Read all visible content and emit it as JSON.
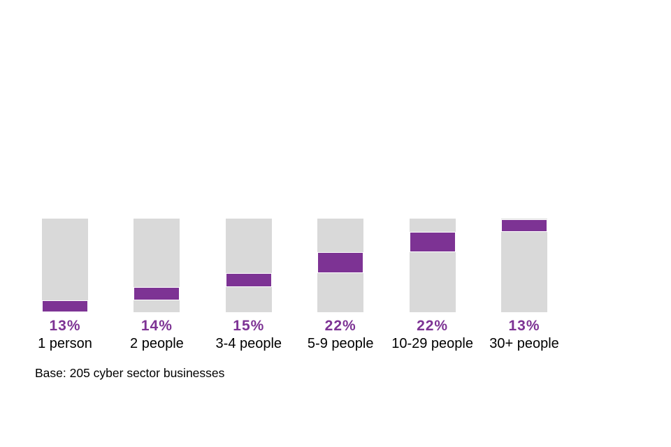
{
  "chart_data": {
    "type": "bar",
    "variant": "single-column-cumulative-distribution",
    "title": "",
    "categories": [
      "1 person",
      "2 people",
      "3-4 people",
      "5-9 people",
      "10-29 people",
      "30+ people"
    ],
    "values": [
      13,
      14,
      15,
      22,
      22,
      13
    ],
    "value_labels": [
      "13%",
      "14%",
      "15%",
      "22%",
      "22%",
      "13%"
    ],
    "cumulative_bottom_pct": [
      0,
      13,
      27,
      42,
      64,
      86
    ],
    "ylim": [
      0,
      100
    ],
    "grid": false,
    "legend": false,
    "note": "Base: 205 cyber sector businesses",
    "colors": {
      "segment": "#7d3394",
      "track": "#d9d9d9",
      "value_label": "#7d3394",
      "category_label": "#000000",
      "note_text": "#000000",
      "background": "#ffffff"
    }
  }
}
